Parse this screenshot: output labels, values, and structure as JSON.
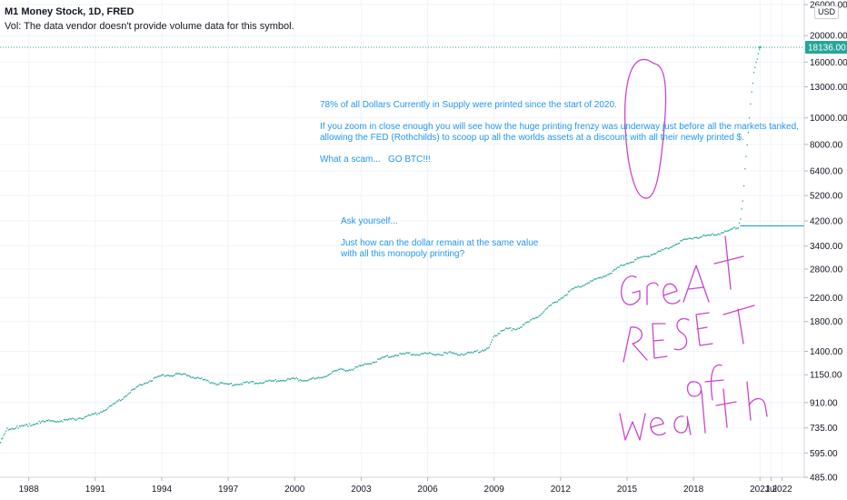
{
  "header": {
    "title": "M1 Money Stock, 1D, FRED",
    "volume_note": "Vol: The data vendor doesn't provide volume data for this symbol."
  },
  "currency_button": "USD",
  "colors": {
    "series": "#26a69a",
    "annotation_text": "#2196f3",
    "drawing": "#cc44cc",
    "price_label_bg": "#26a69a"
  },
  "annotations": {
    "note1": "78% of all Dollars Currently in Supply were printed since the start of 2020.\n\nIf you zoom in close enough you will see how the huge printing frenzy was underway just before all the markets tanked,\nallowing the FED (Rothchilds) to scoop up all the worlds assets at a discount with all their newly printed $.\n\nWhat a scam...   GO BTC!!!",
    "note2": "Ask yourself...\n\nJust how can the dollar remain at the same value\nwith all this monopoly printing?"
  },
  "chart_data": {
    "type": "scatter",
    "title": "M1 Money Stock, 1D, FRED",
    "y_scale": "log",
    "ylim": [
      485,
      27000
    ],
    "xlim": [
      1986.7,
      2023.0
    ],
    "x_ticks": [
      "1988",
      "1991",
      "1994",
      "1997",
      "2000",
      "2003",
      "2006",
      "2009",
      "2012",
      "2015",
      "2018",
      "2021",
      "Jul",
      "2022"
    ],
    "y_ticks": [
      "485.00",
      "595.00",
      "735.00",
      "910.00",
      "1150.00",
      "1400.00",
      "1800.00",
      "2200.00",
      "2800.00",
      "3400.00",
      "4200.00",
      "5200.00",
      "6400.00",
      "8000.00",
      "10000.00",
      "13000.00",
      "16000.00",
      "20000.00",
      "26000.00"
    ],
    "last_value_label": "18136.00",
    "horizontal_line_value": 4030,
    "series": [
      {
        "x": [
          1986.7,
          1987.0,
          1987.5,
          1988.0,
          1988.5,
          1989.0,
          1989.5,
          1990.0,
          1990.5,
          1991.0,
          1991.5,
          1992.0,
          1992.5,
          1993.0,
          1993.5,
          1994.0,
          1994.5,
          1995.0,
          1995.5,
          1996.0,
          1996.5,
          1997.0,
          1997.5,
          1998.0,
          1998.5,
          1999.0,
          1999.5,
          2000.0,
          2000.5,
          2001.0,
          2001.5,
          2002.0,
          2002.5,
          2003.0,
          2003.5,
          2004.0,
          2004.5,
          2005.0,
          2005.5,
          2006.0,
          2006.5,
          2007.0,
          2007.5,
          2008.0,
          2008.5,
          2008.75,
          2009.0,
          2009.5,
          2010.0,
          2010.5,
          2011.0,
          2011.5,
          2012.0,
          2012.5,
          2013.0,
          2013.5,
          2014.0,
          2014.5,
          2015.0,
          2015.5,
          2016.0,
          2016.5,
          2017.0,
          2017.5,
          2018.0,
          2018.5,
          2019.0,
          2019.5,
          2020.0,
          2020.1,
          2020.2,
          2020.3,
          2020.4,
          2020.5,
          2020.6,
          2020.7,
          2020.8,
          2020.9,
          2021.0
        ],
        "y": [
          650,
          725,
          740,
          755,
          770,
          780,
          780,
          790,
          805,
          825,
          860,
          915,
          985,
          1050,
          1100,
          1140,
          1150,
          1148,
          1125,
          1090,
          1065,
          1060,
          1068,
          1075,
          1080,
          1090,
          1100,
          1110,
          1100,
          1110,
          1150,
          1200,
          1200,
          1240,
          1280,
          1330,
          1355,
          1370,
          1370,
          1370,
          1370,
          1380,
          1370,
          1380,
          1420,
          1450,
          1600,
          1680,
          1700,
          1780,
          1900,
          2050,
          2200,
          2350,
          2450,
          2550,
          2650,
          2800,
          2950,
          3050,
          3150,
          3250,
          3400,
          3550,
          3650,
          3700,
          3750,
          3850,
          4000,
          4250,
          5000,
          6500,
          8000,
          10000,
          12500,
          14500,
          16000,
          17200,
          18136
        ]
      }
    ]
  },
  "drawing": {
    "handwriting": "Great RESET of wealth"
  }
}
